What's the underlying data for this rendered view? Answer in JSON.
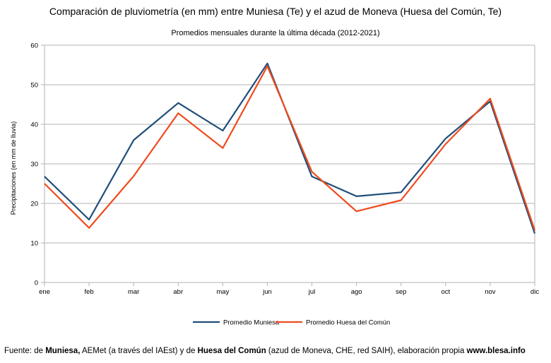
{
  "chart_data": {
    "type": "line",
    "title": "Comparación de pluviometría (en mm) entre Muniesa (Te) y el azud de Moneva (Huesa del Común, Te)",
    "subtitle": "Promedios mensuales durante la última década (2012-2021)",
    "xlabel": "",
    "ylabel": "Precipitaciones (en mm de lluvia)",
    "ylim": [
      0,
      60
    ],
    "yticks": [
      "0",
      "10",
      "20",
      "30",
      "40",
      "50",
      "60"
    ],
    "categories": [
      "ene",
      "feb",
      "mar",
      "abr",
      "may",
      "jun",
      "jul",
      "ago",
      "sep",
      "oct",
      "nov",
      "dic"
    ],
    "grid": "horizontal",
    "legend": "bottom",
    "series": [
      {
        "name": "Promedio Muniesa",
        "color": "#1f4e79",
        "values": [
          26.8,
          15.9,
          36.0,
          45.4,
          38.4,
          55.4,
          26.8,
          21.8,
          22.8,
          36.4,
          45.8,
          12.4
        ]
      },
      {
        "name": "Promedio Huesa del Común",
        "color": "#f04a1d",
        "values": [
          25.0,
          13.8,
          26.9,
          42.8,
          34.0,
          54.7,
          28.0,
          18.0,
          20.8,
          35.0,
          46.5,
          13.2
        ]
      }
    ]
  },
  "footer": {
    "t1": "Fuente: de ",
    "b1": "Muniesa,",
    "t2": " AEMet (a través del IAEst) y de ",
    "b2": "Huesa del Común",
    "t3": " (azud de Moneva, CHE, red SAIH), elaboración propia ",
    "b3": "www.blesa.info"
  }
}
